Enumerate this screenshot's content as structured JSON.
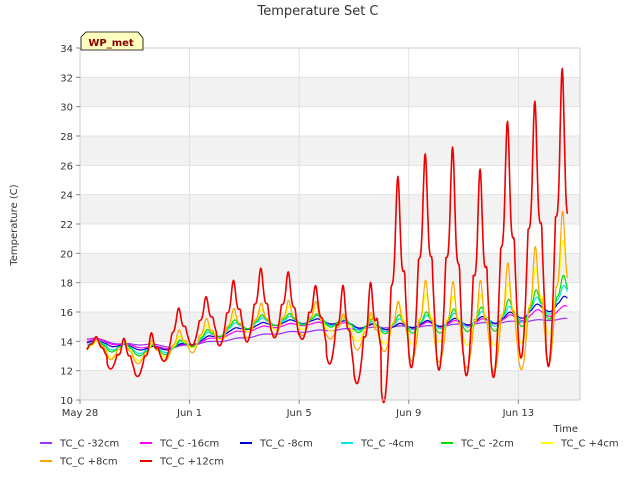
{
  "chart_data": {
    "type": "line",
    "title": "Temperature Set C",
    "xlabel": "Time",
    "ylabel": "Temperature (C)",
    "badge": "WP_met",
    "x_unit": "date",
    "xlim": [
      "2023-05-28",
      "2023-06-15T06:00"
    ],
    "ylim": [
      10,
      34
    ],
    "yticks": [
      10,
      12,
      14,
      16,
      18,
      20,
      22,
      24,
      26,
      28,
      30,
      32,
      34
    ],
    "xticks": [
      {
        "value": "2023-05-28",
        "label": "May 28"
      },
      {
        "value": "2023-06-01",
        "label": "Jun 1"
      },
      {
        "value": "2023-06-05",
        "label": "Jun 5"
      },
      {
        "value": "2023-06-09",
        "label": "Jun 9"
      },
      {
        "value": "2023-06-13",
        "label": "Jun 13"
      }
    ],
    "grid": true,
    "legend_position": "bottom",
    "series": [
      {
        "name": "TC_C -32cm",
        "color": "#9b30ff",
        "daily": [
          14.2,
          13.8,
          13.8,
          13.6,
          13.9,
          14.1,
          14.4,
          14.6,
          14.7,
          14.8,
          14.9,
          15.0,
          15.0,
          15.1,
          15.2,
          15.3,
          15.4,
          15.5,
          15.6
        ],
        "amp": [
          0.05,
          0.05,
          0.05,
          0.05,
          0.05,
          0.05,
          0.05,
          0.05,
          0.05,
          0.05,
          0.05,
          0.05,
          0.05,
          0.05,
          0.05,
          0.05,
          0.05,
          0.05,
          0.05
        ]
      },
      {
        "name": "TC_C -16cm",
        "color": "#ff00ff",
        "daily": [
          14.1,
          13.8,
          13.6,
          13.6,
          14.0,
          14.5,
          14.9,
          15.1,
          15.2,
          15.2,
          15.0,
          15.0,
          15.1,
          15.2,
          15.3,
          15.5,
          15.8,
          16.1,
          16.3
        ],
        "amp": [
          0.1,
          0.1,
          0.1,
          0.1,
          0.1,
          0.1,
          0.1,
          0.1,
          0.1,
          0.1,
          0.15,
          0.2,
          0.2,
          0.2,
          0.2,
          0.25,
          0.3,
          0.3,
          0.3
        ]
      },
      {
        "name": "TC_C -8cm",
        "color": "#0000cd",
        "daily": [
          14.0,
          13.7,
          13.5,
          13.6,
          14.1,
          14.7,
          15.1,
          15.3,
          15.4,
          15.3,
          15.0,
          15.0,
          15.2,
          15.3,
          15.4,
          15.6,
          16.1,
          16.6,
          17.0
        ],
        "amp": [
          0.1,
          0.15,
          0.15,
          0.15,
          0.15,
          0.15,
          0.15,
          0.15,
          0.15,
          0.15,
          0.2,
          0.2,
          0.2,
          0.25,
          0.25,
          0.3,
          0.35,
          0.4,
          0.4
        ]
      },
      {
        "name": "TC_C -4cm",
        "color": "#00e5ee",
        "daily": [
          13.9,
          13.6,
          13.4,
          13.6,
          14.2,
          14.9,
          15.3,
          15.4,
          15.5,
          15.3,
          15.0,
          15.1,
          15.3,
          15.4,
          15.5,
          15.7,
          16.2,
          16.9,
          17.6
        ],
        "amp": [
          0.2,
          0.3,
          0.3,
          0.3,
          0.3,
          0.3,
          0.3,
          0.3,
          0.3,
          0.3,
          0.35,
          0.4,
          0.45,
          0.5,
          0.5,
          0.6,
          0.7,
          0.8,
          0.8
        ]
      },
      {
        "name": "TC_C -2cm",
        "color": "#00dd00",
        "daily": [
          13.8,
          13.6,
          13.3,
          13.6,
          14.3,
          15.0,
          15.4,
          15.5,
          15.5,
          15.3,
          15.0,
          15.2,
          15.3,
          15.4,
          15.5,
          15.8,
          16.3,
          17.1,
          17.8
        ],
        "amp": [
          0.3,
          0.4,
          0.4,
          0.4,
          0.4,
          0.4,
          0.4,
          0.4,
          0.4,
          0.4,
          0.5,
          0.6,
          0.7,
          0.8,
          0.8,
          1.0,
          1.1,
          1.3,
          1.2
        ]
      },
      {
        "name": "TC_C +4cm",
        "color": "#ffff00",
        "daily": [
          13.7,
          13.4,
          13.2,
          13.7,
          14.4,
          15.1,
          15.5,
          15.6,
          15.6,
          15.1,
          14.8,
          15.3,
          15.6,
          15.5,
          15.4,
          15.9,
          16.5,
          17.9,
          18.5
        ],
        "amp": [
          0.4,
          0.6,
          0.6,
          0.6,
          0.6,
          0.7,
          0.7,
          0.8,
          0.8,
          0.6,
          0.9,
          1.3,
          1.7,
          1.6,
          1.7,
          2.0,
          2.4,
          2.9,
          2.6
        ]
      },
      {
        "name": "TC_C +8cm",
        "color": "#ffa500",
        "daily": [
          13.8,
          13.4,
          13.2,
          13.8,
          14.5,
          15.1,
          15.5,
          15.6,
          15.6,
          14.9,
          14.6,
          15.1,
          15.5,
          15.3,
          15.1,
          15.7,
          16.3,
          17.9,
          18.8
        ],
        "amp": [
          0.5,
          0.8,
          0.8,
          0.9,
          1.0,
          1.1,
          1.1,
          1.2,
          1.2,
          1.0,
          1.3,
          1.6,
          2.7,
          2.8,
          3.0,
          3.6,
          4.0,
          4.9,
          4.7
        ]
      },
      {
        "name": "TC_C +12cm",
        "color": "#ee0000",
        "daily": [
          13.8,
          13.0,
          13.0,
          14.8,
          15.5,
          16.0,
          16.6,
          16.5,
          15.9,
          15.0,
          14.2,
          18.3,
          19.8,
          19.7,
          18.3,
          20.7,
          21.8,
          22.6,
          22.7
        ],
        "amp": [
          0.6,
          1.2,
          1.4,
          1.4,
          1.5,
          2.1,
          2.4,
          2.3,
          2.0,
          2.9,
          3.4,
          6.8,
          7.0,
          7.7,
          7.2,
          8.2,
          8.5,
          10.0,
          9.4
        ]
      }
    ]
  }
}
